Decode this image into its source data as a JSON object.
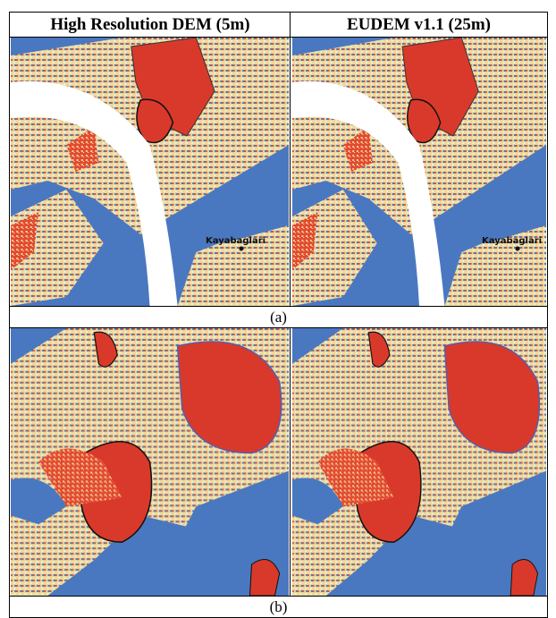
{
  "header": {
    "columns": [
      "High Resolution DEM (5m)",
      "EUDEM v1.1 (25m)"
    ]
  },
  "panels": [
    {
      "caption": "(a)",
      "maps": [
        {
          "label": "Kayabaglari"
        },
        {
          "label": "Kayabaglari"
        }
      ]
    },
    {
      "caption": "(b)"
    }
  ]
}
